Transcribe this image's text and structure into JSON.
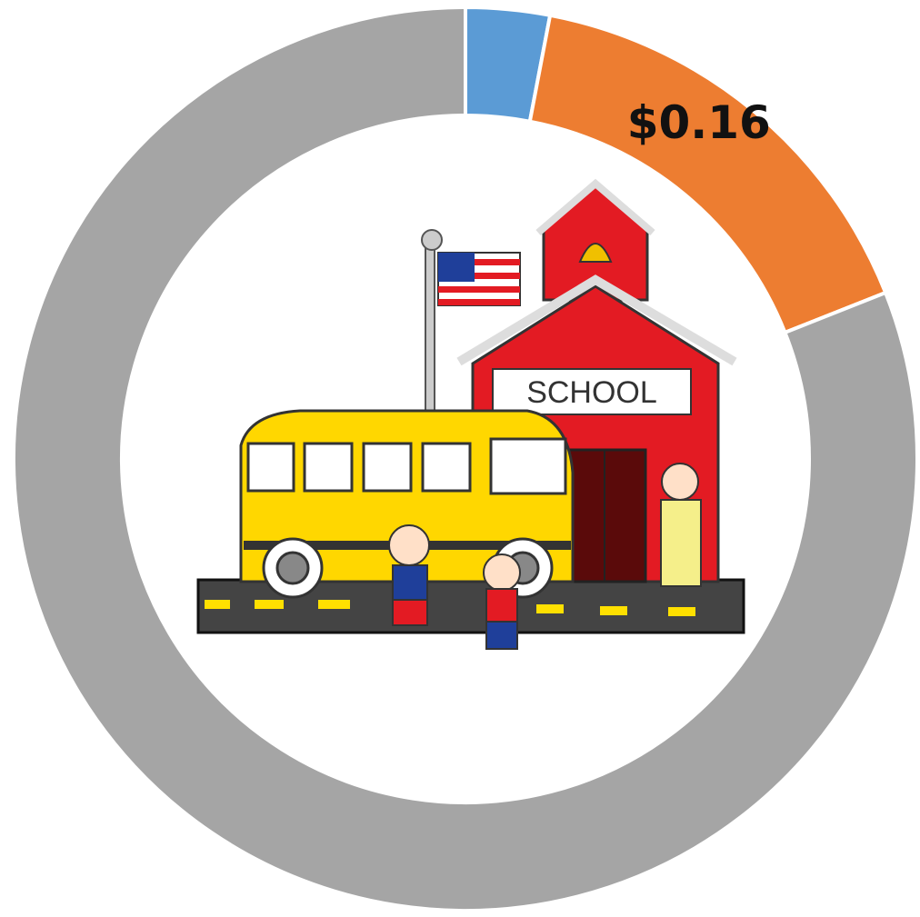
{
  "chart_data": {
    "type": "donut",
    "values": [
      0.03,
      0.16,
      0.81
    ],
    "value_labels": [
      null,
      "$0.16",
      null
    ],
    "colors": [
      "#5b9bd5",
      "#ed7d31",
      "#a5a5a5"
    ],
    "annotation": "SCHOOL"
  }
}
